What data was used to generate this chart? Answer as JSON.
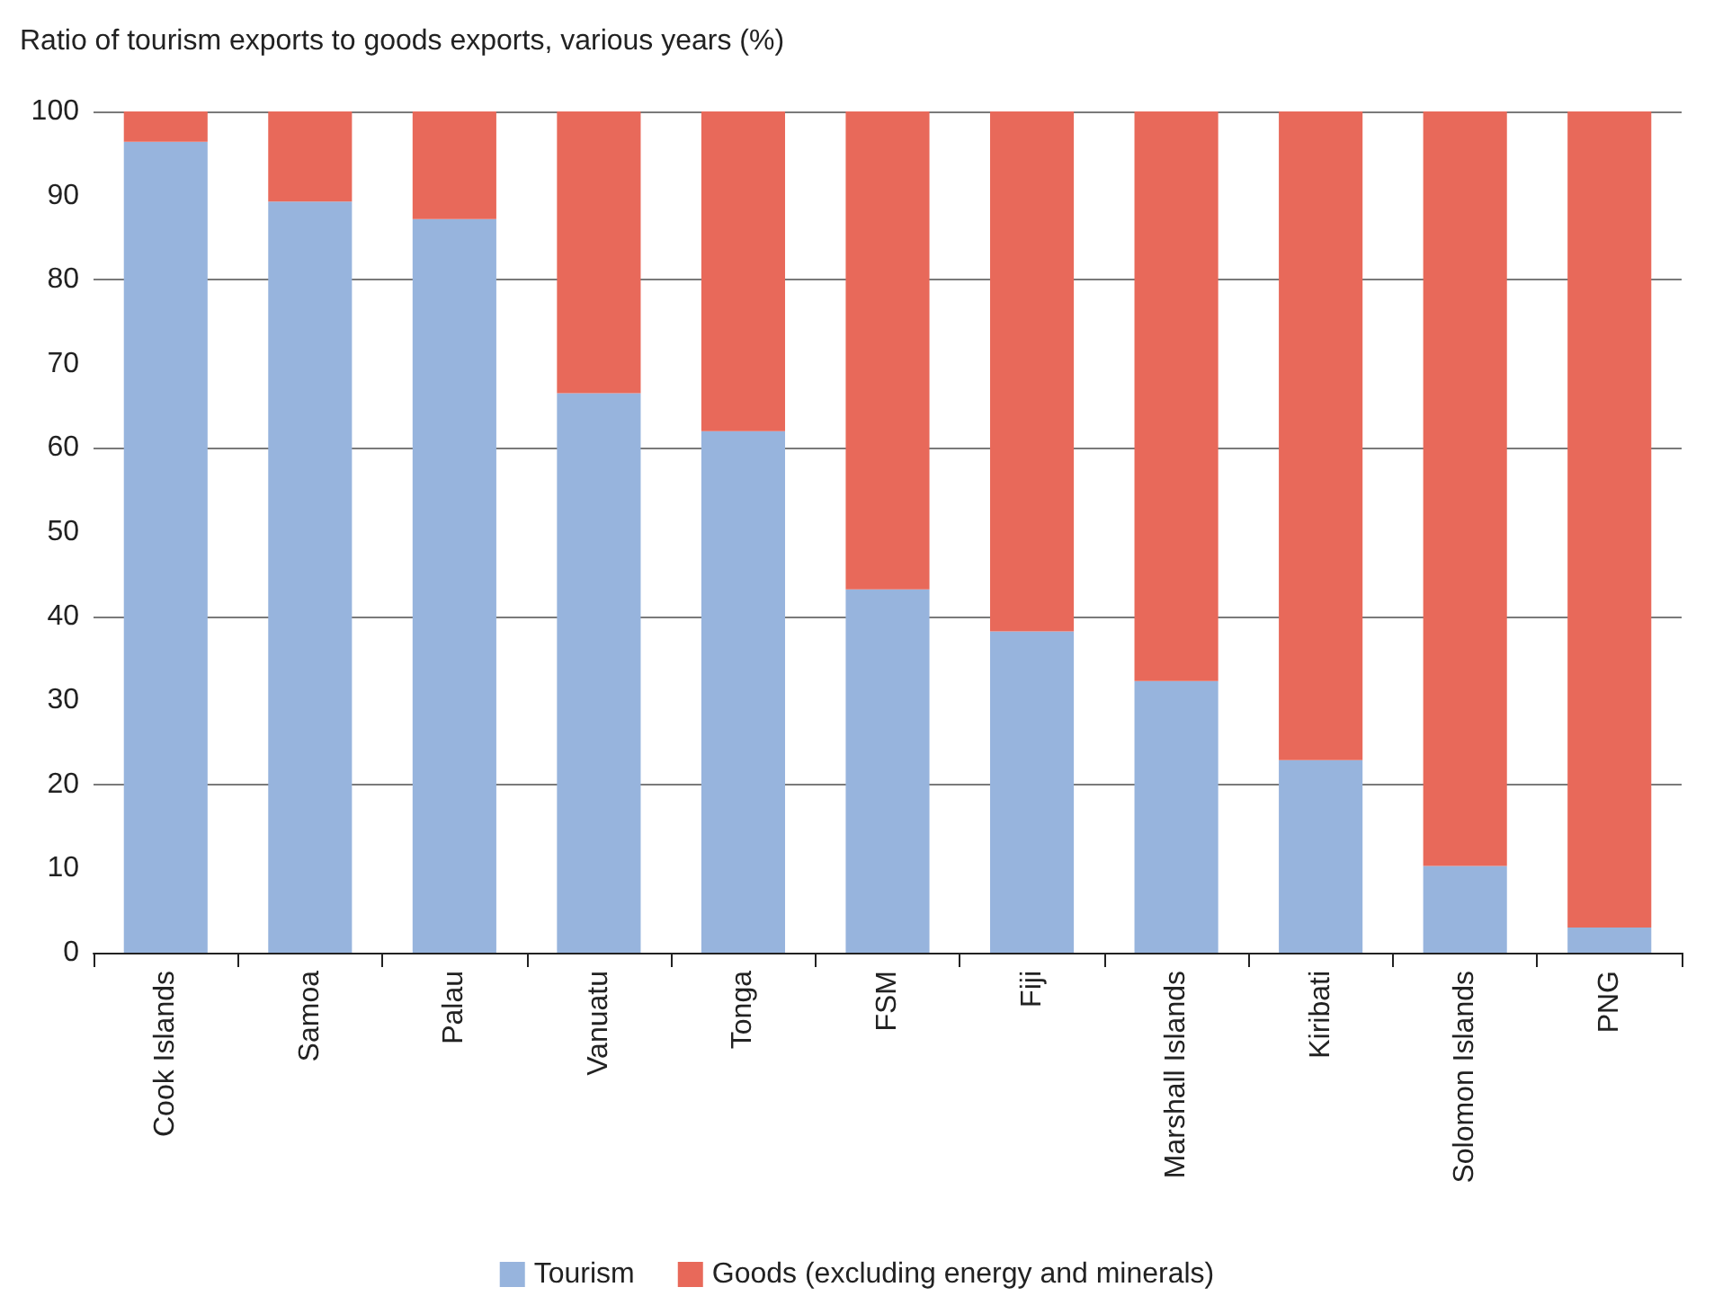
{
  "chart_data": {
    "type": "bar",
    "title": "Ratio of tourism exports to goods exports, various years (%)",
    "categories": [
      "Cook Islands",
      "Samoa",
      "Palau",
      "Vanuatu",
      "Tonga",
      "FSM",
      "Fiji",
      "Marshall Islands",
      "Kiribati",
      "Solomon Islands",
      "PNG"
    ],
    "series": [
      {
        "name": "Tourism",
        "color": "#97b4dd",
        "values": [
          96.4,
          89.3,
          87.2,
          66.5,
          62,
          43.2,
          38.2,
          32.3,
          22.9,
          10.3,
          3
        ]
      },
      {
        "name": "Goods (excluding energy and minerals)",
        "color": "#e8695a",
        "values": [
          3.6,
          10.7,
          12.8,
          33.5,
          38,
          56.8,
          61.8,
          67.7,
          77.1,
          89.7,
          97
        ]
      }
    ],
    "stacked": true,
    "ylim": [
      0,
      100
    ],
    "yticks": [
      0,
      10,
      20,
      30,
      40,
      50,
      60,
      70,
      80,
      90,
      100
    ],
    "grid": "y",
    "legend": "bottom"
  }
}
